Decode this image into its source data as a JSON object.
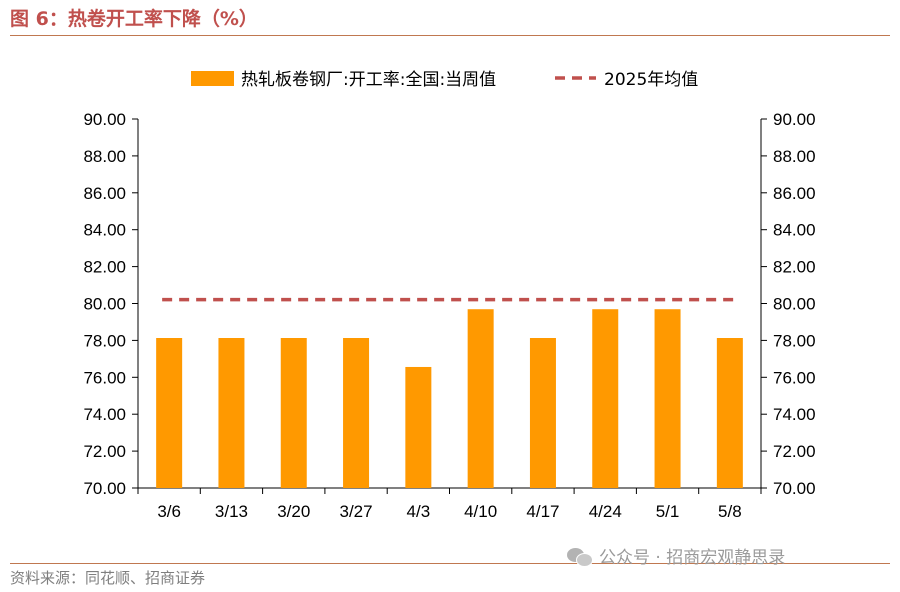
{
  "figure": {
    "title": "图 6：热卷开工率下降（%）",
    "source": "资料来源：同花顺、招商证券",
    "watermark": "公众号 · 招商宏观静思录",
    "watermark_icon": "wechat-icon"
  },
  "chart_data": {
    "type": "bar",
    "title": "",
    "xlabel": "",
    "ylabel": "",
    "categories": [
      "3/6",
      "3/13",
      "3/20",
      "3/27",
      "4/3",
      "4/10",
      "4/17",
      "4/24",
      "5/1",
      "5/8"
    ],
    "series": [
      {
        "name": "热轧板卷钢厂:开工率:全国:当周值",
        "type": "bar",
        "color": "#ff9900",
        "values": [
          78.13,
          78.13,
          78.13,
          78.13,
          76.56,
          79.69,
          78.13,
          79.69,
          79.69,
          78.13
        ]
      },
      {
        "name": "2025年均值",
        "type": "line",
        "style": "dashed",
        "color": "#c0504d",
        "values": [
          80.21,
          80.21,
          80.21,
          80.21,
          80.21,
          80.21,
          80.21,
          80.21,
          80.21,
          80.21
        ]
      }
    ],
    "ylim": [
      70,
      90
    ],
    "yticks": [
      "70.00",
      "72.00",
      "74.00",
      "76.00",
      "78.00",
      "80.00",
      "82.00",
      "84.00",
      "86.00",
      "88.00",
      "90.00"
    ],
    "y2ticks": [
      "70.00",
      "72.00",
      "74.00",
      "76.00",
      "78.00",
      "80.00",
      "82.00",
      "84.00",
      "86.00",
      "88.00",
      "90.00"
    ],
    "legend_position": "top",
    "grid": false
  }
}
